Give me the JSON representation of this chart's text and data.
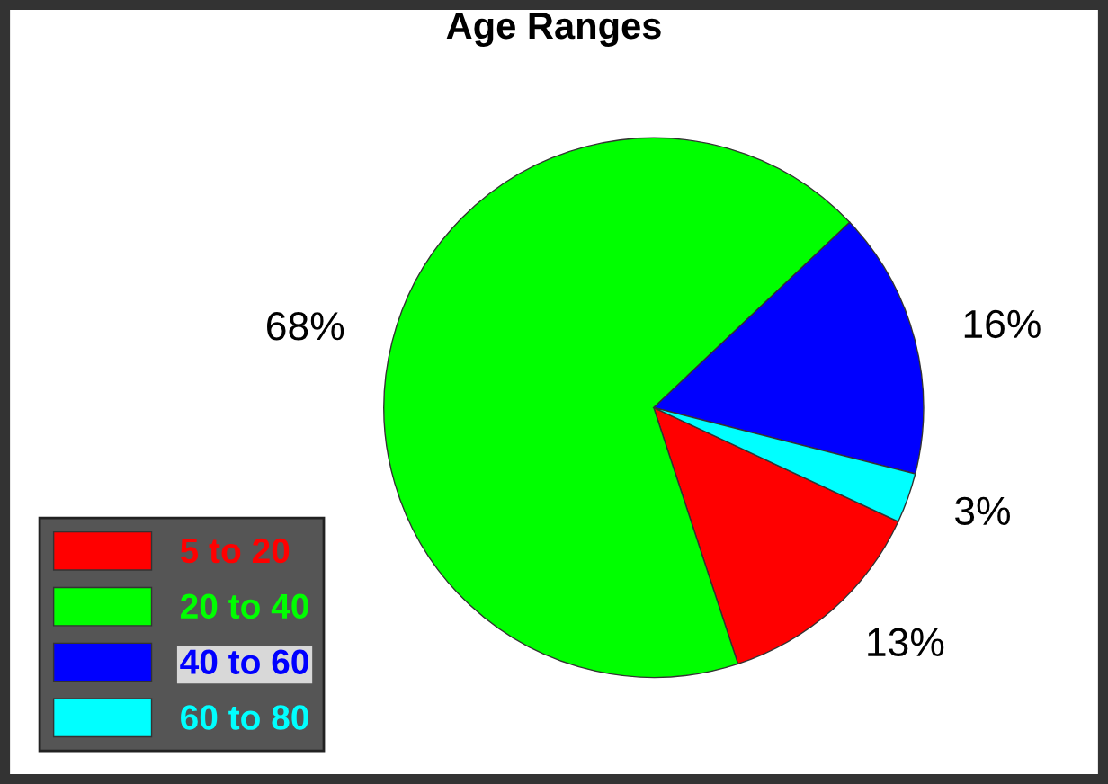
{
  "chart_data": {
    "type": "pie",
    "title": "Age Ranges",
    "categories": [
      "5 to 20",
      "20 to 40",
      "40 to 60",
      "60 to 80"
    ],
    "values": [
      13,
      68,
      16,
      3
    ],
    "value_labels": [
      "13%",
      "68%",
      "16%",
      "3%"
    ],
    "colors": [
      "#ff0000",
      "#00ff00",
      "#0000ff",
      "#00ffff"
    ],
    "legend": "bottom left"
  }
}
